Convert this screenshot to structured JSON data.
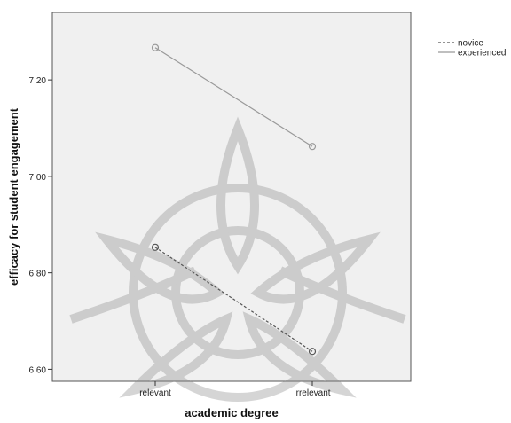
{
  "chart_data": {
    "type": "line",
    "title": "",
    "xlabel": "academic degree",
    "ylabel": "efficacy for student engagement",
    "categories": [
      "relevant",
      "irrelevant"
    ],
    "yticks": [
      "6.60",
      "6.80",
      "7.00",
      "7.20"
    ],
    "ytick_values": [
      6.6,
      6.8,
      7.0,
      7.2
    ],
    "ylim": [
      6.575,
      7.34
    ],
    "grid": false,
    "legend_position": "right-top",
    "series": [
      {
        "name": "novice",
        "values": [
          6.853,
          6.637
        ],
        "style": "dashed",
        "color": "#555555"
      },
      {
        "name": "experienced",
        "values": [
          7.267,
          7.062
        ],
        "style": "solid",
        "color": "#999999"
      }
    ],
    "plot_background": "#f0f0f0"
  }
}
